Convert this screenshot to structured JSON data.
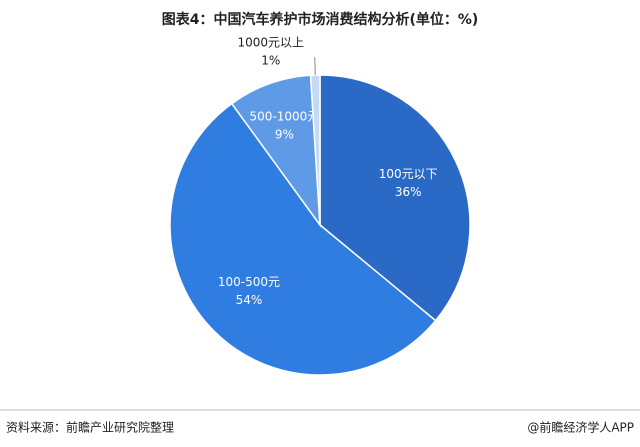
{
  "chart_data": {
    "type": "pie",
    "title": "图表4：中国汽车养护市场消费结构分析(单位：%)",
    "categories": [
      "100元以下",
      "100-500元",
      "500-1000元",
      "1000元以上"
    ],
    "values": [
      36,
      54,
      9,
      1
    ],
    "value_labels": [
      "36%",
      "54%",
      "9%",
      "1%"
    ],
    "colors": [
      "#2a69c6",
      "#2f7de0",
      "#5f9ae6",
      "#c3d9f4"
    ],
    "source": "资料来源：前瞻产业研究院整理",
    "credit": "@前瞻经济学人APP"
  }
}
